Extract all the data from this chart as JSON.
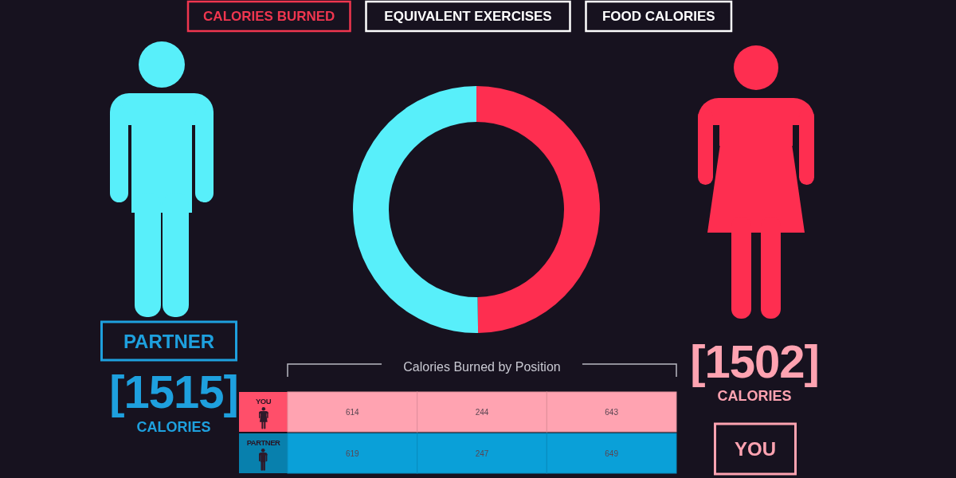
{
  "chart_data": [
    {
      "type": "other",
      "title": "CALORIES BURNED",
      "annotations": [
        "EQUIVALENT EXERCISES",
        "FOOD CALORIES"
      ]
    },
    {
      "type": "donut",
      "categories": [
        null,
        null
      ],
      "values": [
        1502,
        1515
      ],
      "colors": [
        "#fe2e50",
        "#58effa"
      ],
      "value_labels": [
        "[1502]",
        "[1515]"
      ],
      "annotations": [
        "YOU",
        "CALORIES",
        "PARTNER",
        "CALORIES"
      ]
    },
    {
      "type": "heatmap",
      "title": "Calories Burned by Position",
      "categories": [
        null,
        null,
        null
      ],
      "y_categories": [
        "YOU",
        "PARTNER"
      ],
      "cells": [
        [
          614,
          244,
          643
        ],
        [
          619,
          247,
          649
        ]
      ],
      "colors": [
        "#ffa3b1",
        "#ffa3b1",
        "#ffa3b1",
        "#0aa0d8",
        "#0aa0d8",
        "#0aa0d8"
      ],
      "data_labels": true
    }
  ]
}
